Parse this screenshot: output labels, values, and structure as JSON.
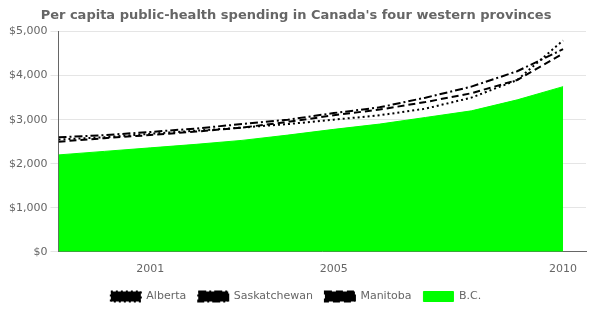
{
  "chart_data": {
    "type": "line",
    "title": "Per capita public-health spending in Canada's four western provinces",
    "x": [
      1999,
      2000,
      2001,
      2002,
      2003,
      2004,
      2005,
      2006,
      2007,
      2008,
      2009,
      2010
    ],
    "series": [
      {
        "name": "B.C.",
        "type": "area",
        "color": "#00ff00",
        "line_style": "solid",
        "values": [
          2200,
          2280,
          2360,
          2440,
          2530,
          2650,
          2780,
          2900,
          3050,
          3200,
          3450,
          3750
        ]
      },
      {
        "name": "Alberta",
        "type": "line",
        "color": "black",
        "line_style": "dotted",
        "values": [
          2550,
          2600,
          2680,
          2750,
          2820,
          2900,
          3000,
          3100,
          3250,
          3500,
          3900,
          4800
        ]
      },
      {
        "name": "Saskatchewan",
        "type": "line",
        "color": "black",
        "line_style": "dashdot",
        "values": [
          2600,
          2650,
          2720,
          2800,
          2900,
          3000,
          3150,
          3280,
          3500,
          3750,
          4100,
          4600
        ]
      },
      {
        "name": "Manitoba",
        "type": "line",
        "color": "black",
        "line_style": "dashed",
        "values": [
          2500,
          2580,
          2650,
          2730,
          2820,
          2950,
          3100,
          3230,
          3400,
          3600,
          3900,
          4500
        ]
      }
    ],
    "xlim": [
      1999,
      2010.5
    ],
    "xticks": [
      2001,
      2005,
      2010
    ],
    "ylim": [
      0,
      5000
    ],
    "yticks": [
      {
        "value": 0,
        "label": "$0"
      },
      {
        "value": 1000,
        "label": "$1,000"
      },
      {
        "value": 2000,
        "label": "$2,000"
      },
      {
        "value": 3000,
        "label": "$3,000"
      },
      {
        "value": 4000,
        "label": "$4,000"
      },
      {
        "value": 5000,
        "label": "$5,000"
      }
    ],
    "grid": "y",
    "legend": "bottom"
  }
}
